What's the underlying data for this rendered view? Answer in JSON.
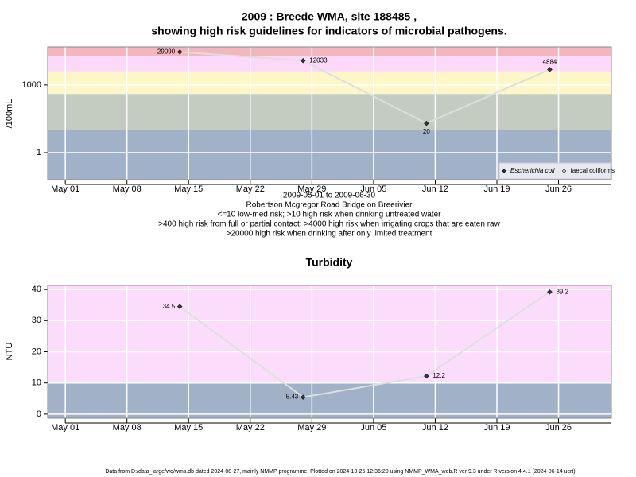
{
  "chart_data": [
    {
      "type": "line",
      "title": [
        "2009 : Breede WMA, site 188485 ,",
        "showing high risk guidelines for indicators of microbial pathogens."
      ],
      "subtitle": [
        "2009-05-01 to 2009-06-30",
        "Robertson Mcgregor Road Bridge on Breerivier",
        "<=10 low-med risk; >10 high risk when drinking untreated water",
        ">400 high risk from full or partial contact; >4000 high risk when irrigating crops that are eaten raw",
        ">20000 high risk when drinking after only limited treatment"
      ],
      "y_label": "/100mL",
      "x": [
        "2009-05-14",
        "2009-05-28",
        "2009-06-11",
        "2009-06-25"
      ],
      "series": [
        {
          "name": "Escherichia coli",
          "color": "#333333",
          "values": [
            29090,
            12033,
            20,
            4884
          ]
        },
        {
          "name": "faecal coliforms",
          "color": "#333333",
          "values": [
            null,
            null,
            null,
            null
          ]
        }
      ],
      "log_scale": true,
      "xlim": [
        "2009-04-29",
        "2009-07-02"
      ],
      "xticks": [
        {
          "value": "2009-05-01",
          "label": "May 01"
        },
        {
          "value": "2009-05-08",
          "label": "May 08"
        },
        {
          "value": "2009-05-15",
          "label": "May 15"
        },
        {
          "value": "2009-05-22",
          "label": "May 22"
        },
        {
          "value": "2009-05-29",
          "label": "May 29"
        },
        {
          "value": "2009-06-05",
          "label": "Jun 05"
        },
        {
          "value": "2009-06-12",
          "label": "Jun 12"
        },
        {
          "value": "2009-06-19",
          "label": "Jun 19"
        },
        {
          "value": "2009-06-26",
          "label": "Jun 26"
        }
      ],
      "ylim": [
        0.063,
        49000
      ],
      "yticks": [
        1,
        1000
      ],
      "band_thresholds": [
        10,
        400,
        4000,
        20000
      ],
      "band_colors": [
        "#a1b1c8",
        "#c4cbc0",
        "#fdf7c8",
        "#fcd8f9",
        "#f4b6bd"
      ],
      "grid": true,
      "legend": "bottom-right"
    },
    {
      "type": "line",
      "title": [
        "Turbidity"
      ],
      "y_label": "NTU",
      "x": [
        "2009-05-14",
        "2009-05-28",
        "2009-06-11",
        "2009-06-25"
      ],
      "series": [
        {
          "name": null,
          "color": "#333333",
          "values": [
            34.5,
            5.43,
            12.2,
            39.2
          ]
        }
      ],
      "log_scale": false,
      "xlim": [
        "2009-04-29",
        "2009-07-02"
      ],
      "xticks": [
        {
          "value": "2009-05-01",
          "label": "May 01"
        },
        {
          "value": "2009-05-08",
          "label": "May 08"
        },
        {
          "value": "2009-05-15",
          "label": "May 15"
        },
        {
          "value": "2009-05-22",
          "label": "May 22"
        },
        {
          "value": "2009-05-29",
          "label": "May 29"
        },
        {
          "value": "2009-06-05",
          "label": "Jun 05"
        },
        {
          "value": "2009-06-12",
          "label": "Jun 12"
        },
        {
          "value": "2009-06-19",
          "label": "Jun 19"
        },
        {
          "value": "2009-06-26",
          "label": "Jun 26"
        }
      ],
      "ylim": [
        -1.3,
        41.3
      ],
      "yticks": [
        0,
        10,
        20,
        30,
        40
      ],
      "band_thresholds": [
        10
      ],
      "band_colors": [
        "#a1b1c8",
        "#fcdcfb"
      ],
      "grid": true
    }
  ],
  "footer": "Data from D:/data_large/wq/wms.db dated 2024-08-27, mainly NMMP programme. Plotted on 2024-10-25 12:36:20 using NMMP_WMA_web.R ver 9.3 under R version 4.4.1 (2024-06-14 ucrt)"
}
